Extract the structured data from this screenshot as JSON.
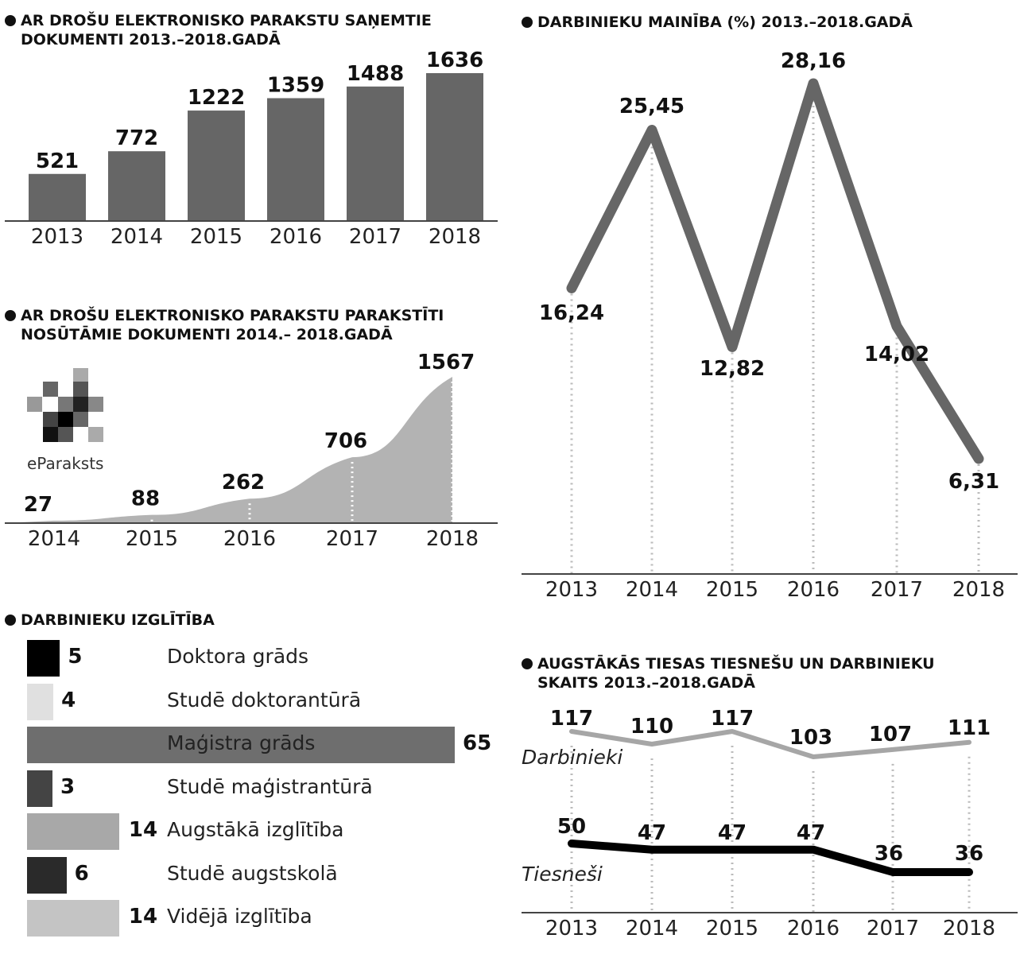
{
  "titles": {
    "chart1_line1": "AR DROŠU ELEKTRONISKO PARAKSTU SAŅEMTIE",
    "chart1_line2": "DOKUMENTI 2013.–2018.GADĀ",
    "chart2_line1": "AR DROŠU ELEKTRONISKO PARAKSTU PARAKSTĪTI",
    "chart2_line2": "NOSŪTĀMIE DOKUMENTI 2014.– 2018.GADĀ",
    "chart3_line1": "DARBINIEKU IZGLĪTĪBA",
    "chart4_line1": "DARBINIEKU MAINĪBA (%) 2013.–2018.GADĀ",
    "chart5_line1": "AUGSTĀKĀS TIESAS TIESNEŠU UN DARBINIEKU",
    "chart5_line2": "SKAITS 2013.–2018.GADĀ"
  },
  "logo": {
    "text": "eParaksts"
  },
  "colors": {
    "bar": "#666666",
    "area": "#b3b3b3",
    "line": "#666666",
    "darbinieki": "#a6a6a6",
    "tiesnesi": "#000000"
  },
  "chart_data": [
    {
      "type": "bar",
      "title": "AR DROŠU ELEKTRONISKO PARAKSTU SAŅEMTIE DOKUMENTI 2013.–2018.GADĀ",
      "categories": [
        "2013",
        "2014",
        "2015",
        "2016",
        "2017",
        "2018"
      ],
      "values": [
        521,
        772,
        1222,
        1359,
        1488,
        1636
      ],
      "value_labels": [
        "521",
        "772",
        "1222",
        "1359",
        "1488",
        "1636"
      ],
      "ylim": [
        0,
        1636
      ]
    },
    {
      "type": "area",
      "title": "AR DROŠU ELEKTRONISKO PARAKSTU PARAKSTĪTI NOSŪTĀMIE DOKUMENTI 2014.– 2018.GADĀ",
      "categories": [
        "2014",
        "2015",
        "2016",
        "2017",
        "2018"
      ],
      "values": [
        27,
        88,
        262,
        706,
        1567
      ],
      "value_labels": [
        "27",
        "88",
        "262",
        "706",
        "1567"
      ],
      "ylim": [
        0,
        1567
      ]
    },
    {
      "type": "bar",
      "orientation": "horizontal",
      "title": "DARBINIEKU IZGLĪTĪBA",
      "categories": [
        "Doktora grāds",
        "Studē doktorantūrā",
        "Maģistra grāds",
        "Studē maģistrantūrā",
        "Augstākā izglītība",
        "Studē augstskolā",
        "Vidējā izglītība"
      ],
      "values": [
        5,
        4,
        65,
        3,
        14,
        6,
        14
      ],
      "value_labels": [
        "5",
        "4",
        "65",
        "3",
        "14",
        "6",
        "14"
      ],
      "colors": [
        "#000000",
        "#e0e0e0",
        "#6e6e6e",
        "#444444",
        "#a8a8a8",
        "#2a2a2a",
        "#c4c4c4"
      ]
    },
    {
      "type": "line",
      "title": "DARBINIEKU MAINĪBA (%) 2013.–2018.GADĀ",
      "categories": [
        "2013",
        "2014",
        "2015",
        "2016",
        "2017",
        "2018"
      ],
      "values": [
        16.24,
        25.45,
        12.82,
        28.16,
        14.02,
        6.31
      ],
      "value_labels": [
        "16,24",
        "25,45",
        "12,82",
        "28,16",
        "14,02",
        "6,31"
      ]
    },
    {
      "type": "line",
      "title": "AUGSTĀKĀS TIESAS TIESNEŠU UN DARBINIEKU SKAITS 2013.–2018.GADĀ",
      "categories": [
        "2013",
        "2014",
        "2015",
        "2016",
        "2017",
        "2018"
      ],
      "series": [
        {
          "name": "Darbinieki",
          "values": [
            117,
            110,
            117,
            103,
            107,
            111
          ],
          "value_labels": [
            "117",
            "110",
            "117",
            "103",
            "107",
            "111"
          ]
        },
        {
          "name": "Tiesneši",
          "values": [
            50,
            47,
            47,
            47,
            36,
            36
          ],
          "value_labels": [
            "50",
            "47",
            "47",
            "47",
            "36",
            "36"
          ]
        }
      ]
    }
  ]
}
